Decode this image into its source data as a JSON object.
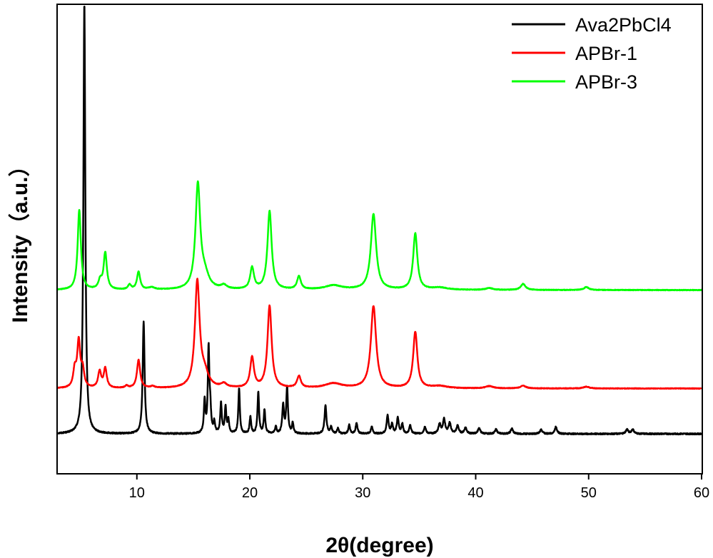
{
  "chart_data": {
    "type": "line",
    "xlabel": "2θ(degree)",
    "ylabel": "Intensity（a.u.）",
    "xlim": [
      3,
      60
    ],
    "x_ticks": [
      10,
      20,
      30,
      40,
      50,
      60
    ],
    "y_ticks": "none",
    "grid": false,
    "legend_position": "top-right",
    "series": [
      {
        "name": "Ava2PbCl4",
        "color": "#000000",
        "baseline": 0.0,
        "noise": 0.3,
        "peaks": [
          [
            5.35,
            100,
            0.1
          ],
          [
            10.6,
            26.0,
            0.1
          ],
          [
            16.0,
            7.5,
            0.08
          ],
          [
            16.35,
            19.5,
            0.08
          ],
          [
            16.5,
            5.0,
            0.08
          ],
          [
            16.85,
            2.5,
            0.08
          ],
          [
            17.45,
            7.0,
            0.08
          ],
          [
            17.85,
            6.0,
            0.08
          ],
          [
            18.1,
            3.0,
            0.08
          ],
          [
            19.05,
            10.5,
            0.08
          ],
          [
            20.05,
            3.8,
            0.08
          ],
          [
            20.75,
            9.7,
            0.08
          ],
          [
            21.3,
            5.5,
            0.08
          ],
          [
            22.3,
            1.6,
            0.08
          ],
          [
            22.95,
            6.5,
            0.09
          ],
          [
            23.3,
            10.5,
            0.09
          ],
          [
            23.8,
            2.4,
            0.08
          ],
          [
            26.7,
            6.5,
            0.1
          ],
          [
            27.2,
            1.6,
            0.09
          ],
          [
            27.8,
            1.2,
            0.09
          ],
          [
            28.8,
            2.0,
            0.09
          ],
          [
            29.45,
            2.5,
            0.09
          ],
          [
            30.8,
            1.7,
            0.09
          ],
          [
            32.2,
            4.2,
            0.1
          ],
          [
            32.6,
            2.2,
            0.09
          ],
          [
            33.1,
            3.6,
            0.1
          ],
          [
            33.5,
            2.2,
            0.09
          ],
          [
            34.2,
            1.9,
            0.1
          ],
          [
            35.5,
            1.6,
            0.1
          ],
          [
            36.8,
            2.2,
            0.12
          ],
          [
            37.2,
            3.3,
            0.12
          ],
          [
            37.7,
            2.4,
            0.12
          ],
          [
            38.4,
            1.8,
            0.12
          ],
          [
            39.1,
            1.4,
            0.12
          ],
          [
            40.3,
            1.3,
            0.12
          ],
          [
            41.8,
            1.0,
            0.12
          ],
          [
            43.2,
            1.2,
            0.12
          ],
          [
            45.8,
            1.0,
            0.12
          ],
          [
            47.1,
            1.6,
            0.12
          ],
          [
            53.4,
            1.0,
            0.13
          ],
          [
            53.9,
            1.0,
            0.13
          ]
        ]
      },
      {
        "name": "APBr-1",
        "color": "#ff0000",
        "baseline": 10.5,
        "noise": 0.15,
        "peaks": [
          [
            4.5,
            4.0,
            0.16
          ],
          [
            4.85,
            10.5,
            0.16
          ],
          [
            5.2,
            4.0,
            0.16
          ],
          [
            6.7,
            3.8,
            0.16
          ],
          [
            7.2,
            4.5,
            0.16
          ],
          [
            9.1,
            0.5,
            0.16
          ],
          [
            10.15,
            6.5,
            0.17
          ],
          [
            11.4,
            0.4,
            0.2
          ],
          [
            15.35,
            24.5,
            0.25
          ],
          [
            16.0,
            3.0,
            0.4
          ],
          [
            17.7,
            0.9,
            0.3
          ],
          [
            20.2,
            7.0,
            0.2
          ],
          [
            21.75,
            19.0,
            0.22
          ],
          [
            24.35,
            2.7,
            0.2
          ],
          [
            27.4,
            1.1,
            0.9
          ],
          [
            30.95,
            19.0,
            0.28
          ],
          [
            34.65,
            13.0,
            0.22
          ],
          [
            36.8,
            0.5,
            0.8
          ],
          [
            41.2,
            0.5,
            0.4
          ],
          [
            44.2,
            0.6,
            0.3
          ],
          [
            49.8,
            0.4,
            0.3
          ]
        ]
      },
      {
        "name": "APBr-3",
        "color": "#00ff00",
        "baseline": 33.3,
        "noise": 0.15,
        "peaks": [
          [
            4.9,
            18.5,
            0.17
          ],
          [
            6.75,
            2.0,
            0.18
          ],
          [
            7.2,
            8.5,
            0.17
          ],
          [
            9.35,
            1.1,
            0.16
          ],
          [
            10.15,
            4.1,
            0.17
          ],
          [
            11.3,
            0.5,
            0.3
          ],
          [
            15.4,
            24.0,
            0.25
          ],
          [
            16.0,
            3.0,
            0.45
          ],
          [
            17.7,
            0.9,
            0.3
          ],
          [
            20.2,
            5.0,
            0.2
          ],
          [
            21.75,
            18.2,
            0.22
          ],
          [
            24.35,
            3.0,
            0.2
          ],
          [
            27.4,
            1.0,
            0.9
          ],
          [
            30.95,
            17.5,
            0.28
          ],
          [
            34.65,
            13.0,
            0.22
          ],
          [
            36.8,
            0.5,
            0.8
          ],
          [
            41.2,
            0.4,
            0.4
          ],
          [
            44.2,
            1.4,
            0.25
          ],
          [
            49.8,
            0.7,
            0.25
          ]
        ]
      }
    ]
  }
}
